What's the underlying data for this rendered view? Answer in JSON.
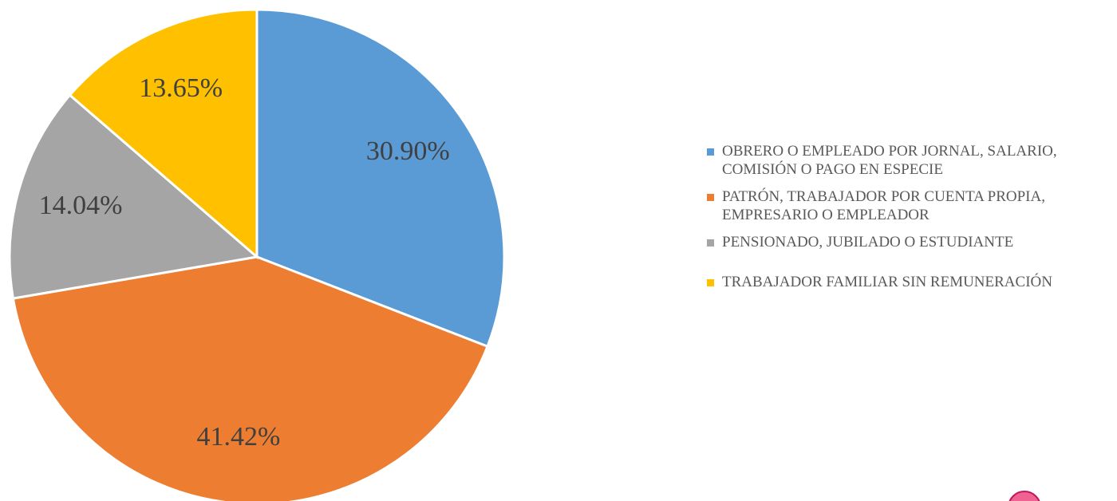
{
  "chart_data": {
    "type": "pie",
    "series": [
      {
        "name": "OBRERO O EMPLEADO POR JORNAL, SALARIO, COMISIÓN O PAGO EN ESPECIE",
        "color": "#5b9bd5"
      },
      {
        "name": "PATRÓN, TRABAJADOR POR CUENTA PROPIA, EMPRESARIO O EMPLEADOR",
        "color": "#ed7d31"
      },
      {
        "name": "PENSIONADO, JUBILADO O ESTUDIANTE",
        "color": "#a5a5a5"
      },
      {
        "name": "TRABAJADOR FAMILIAR SIN REMUNERACIÓN",
        "color": "#ffc000"
      }
    ],
    "values": [
      30.9,
      41.42,
      14.04,
      13.65
    ],
    "value_labels": [
      "30.90%",
      "41.42%",
      "14.04%",
      "13.65%"
    ],
    "legend": "right"
  }
}
